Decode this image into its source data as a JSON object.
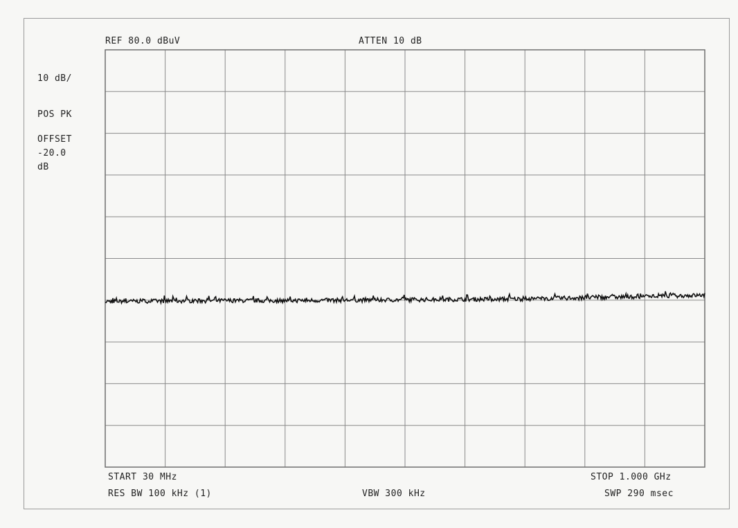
{
  "header": {
    "ref": "REF  80.0 dBuV",
    "atten": "ATTEN 10 dB"
  },
  "side": {
    "scale": "10 dB/",
    "detector": "POS PK",
    "offset_label": "OFFSET",
    "offset_value": "-20.0",
    "offset_unit": "dB"
  },
  "footer": {
    "start": "START 30 MHz",
    "stop": "STOP 1.000 GHz",
    "res_bw": "RES BW 100 kHz (1)",
    "vbw": "VBW 300 kHz",
    "swp": "SWP 290 msec"
  },
  "colors": {
    "grid": "#8a8a8a",
    "trace": "#111111",
    "paper": "#f7f7f5"
  },
  "chart_data": {
    "type": "line",
    "title": "",
    "xlabel": "",
    "ylabel": "",
    "x_unit": "MHz",
    "y_unit": "dBuV",
    "xlim": [
      30,
      1000
    ],
    "ylim": [
      -20,
      80
    ],
    "x_divisions": 10,
    "y_divisions": 10,
    "grid": true,
    "series": [
      {
        "x": [
          30,
          127,
          224,
          321,
          418,
          515,
          612,
          709,
          806,
          903,
          1000
        ],
        "y": [
          19.7,
          19.8,
          19.9,
          19.9,
          20.0,
          20.1,
          20.2,
          20.3,
          20.6,
          20.9,
          21.2
        ]
      }
    ]
  }
}
